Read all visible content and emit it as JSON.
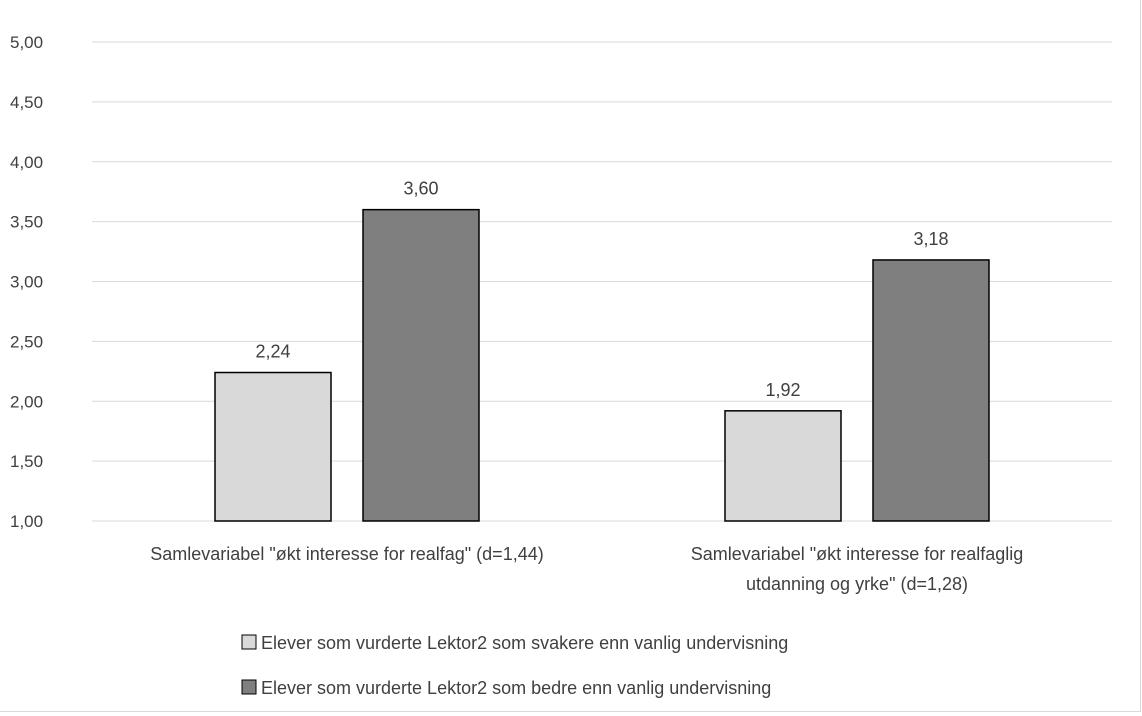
{
  "chart_data": {
    "type": "bar",
    "categories": [
      "Samlevariabel \"økt interesse for realfag\" (d=1,44)",
      "Samlevariabel \"økt interesse for realfaglig utdanning og yrke\" (d=1,28)"
    ],
    "category_lines": [
      [
        "Samlevariabel \"økt interesse for realfag\" (d=1,44)"
      ],
      [
        "Samlevariabel \"økt interesse for realfaglig",
        "utdanning og yrke\" (d=1,28)"
      ]
    ],
    "series": [
      {
        "name": "Elever som vurderte Lektor2 som svakere enn vanlig undervisning",
        "values": [
          2.24,
          1.92
        ],
        "labels": [
          "2,24",
          "1,92"
        ],
        "color": "#d9d9d9"
      },
      {
        "name": "Elever som vurderte Lektor2 som bedre enn vanlig undervisning",
        "values": [
          3.6,
          3.18
        ],
        "labels": [
          "3,60",
          "3,18"
        ],
        "color": "#7f7f7f"
      }
    ],
    "ylim": [
      1.0,
      5.0
    ],
    "yticks": [
      1.0,
      1.5,
      2.0,
      2.5,
      3.0,
      3.5,
      4.0,
      4.5,
      5.0
    ],
    "ytick_labels": [
      "1,00",
      "1,50",
      "2,00",
      "2,50",
      "3,00",
      "3,50",
      "4,00",
      "4,50",
      "5,00"
    ],
    "grid": true,
    "legend_position": "bottom",
    "title": "",
    "xlabel": "",
    "ylabel": ""
  }
}
